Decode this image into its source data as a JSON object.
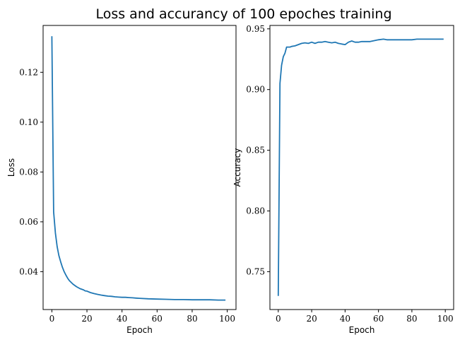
{
  "figure_title": "Loss and accurancy of 100 epoches training",
  "chart_data": [
    {
      "type": "line",
      "xlabel": "Epoch",
      "ylabel": "Loss",
      "xlim": [
        -5,
        105
      ],
      "ylim": [
        0.0248,
        0.1388
      ],
      "xticks": [
        0,
        20,
        40,
        60,
        80,
        100
      ],
      "yticks": [
        0.04,
        0.06,
        0.08,
        0.1,
        0.12
      ],
      "ytick_labels": [
        "0.04",
        "0.06",
        "0.08",
        "0.10",
        "0.12"
      ],
      "grid": false,
      "color": "#1f77b4",
      "x": [
        0,
        1,
        2,
        3,
        4,
        5,
        6,
        7,
        8,
        9,
        10,
        12,
        14,
        16,
        18,
        19,
        20,
        22,
        24,
        26,
        28,
        30,
        32,
        34,
        36,
        38,
        40,
        42,
        44,
        46,
        48,
        50,
        55,
        60,
        65,
        70,
        75,
        80,
        85,
        88,
        90,
        95,
        99
      ],
      "y": [
        0.1345,
        0.064,
        0.0555,
        0.05,
        0.0465,
        0.044,
        0.0418,
        0.04,
        0.0386,
        0.0374,
        0.0364,
        0.035,
        0.034,
        0.0332,
        0.0327,
        0.0323,
        0.0322,
        0.0316,
        0.0312,
        0.0309,
        0.0306,
        0.0304,
        0.0302,
        0.0301,
        0.0299,
        0.0298,
        0.0297,
        0.0297,
        0.0296,
        0.0295,
        0.0294,
        0.0293,
        0.0291,
        0.029,
        0.0289,
        0.0288,
        0.0288,
        0.0287,
        0.0287,
        0.0287,
        0.0287,
        0.0286,
        0.0286
      ]
    },
    {
      "type": "line",
      "xlabel": "Epoch",
      "ylabel": "Accuracy",
      "xlim": [
        -5,
        105
      ],
      "ylim": [
        0.7188,
        0.9528
      ],
      "xticks": [
        0,
        20,
        40,
        60,
        80,
        100
      ],
      "yticks": [
        0.75,
        0.8,
        0.85,
        0.9,
        0.95
      ],
      "ytick_labels": [
        "0.75",
        "0.80",
        "0.85",
        "0.90",
        "0.95"
      ],
      "grid": false,
      "color": "#1f77b4",
      "x": [
        0,
        1,
        2,
        3,
        4,
        5,
        6,
        7,
        8,
        10,
        12,
        14,
        16,
        18,
        20,
        22,
        24,
        26,
        28,
        30,
        32,
        34,
        36,
        38,
        40,
        42,
        44,
        46,
        48,
        50,
        55,
        60,
        63,
        65,
        70,
        75,
        80,
        83,
        85,
        88,
        90,
        95,
        99
      ],
      "y": [
        0.73,
        0.905,
        0.92,
        0.927,
        0.93,
        0.935,
        0.935,
        0.935,
        0.9355,
        0.936,
        0.937,
        0.938,
        0.9385,
        0.938,
        0.939,
        0.938,
        0.939,
        0.939,
        0.9395,
        0.939,
        0.9385,
        0.939,
        0.938,
        0.9375,
        0.937,
        0.939,
        0.94,
        0.939,
        0.939,
        0.9395,
        0.9395,
        0.941,
        0.9415,
        0.941,
        0.941,
        0.941,
        0.941,
        0.9415,
        0.9415,
        0.9415,
        0.9415,
        0.9415,
        0.9415
      ]
    }
  ]
}
